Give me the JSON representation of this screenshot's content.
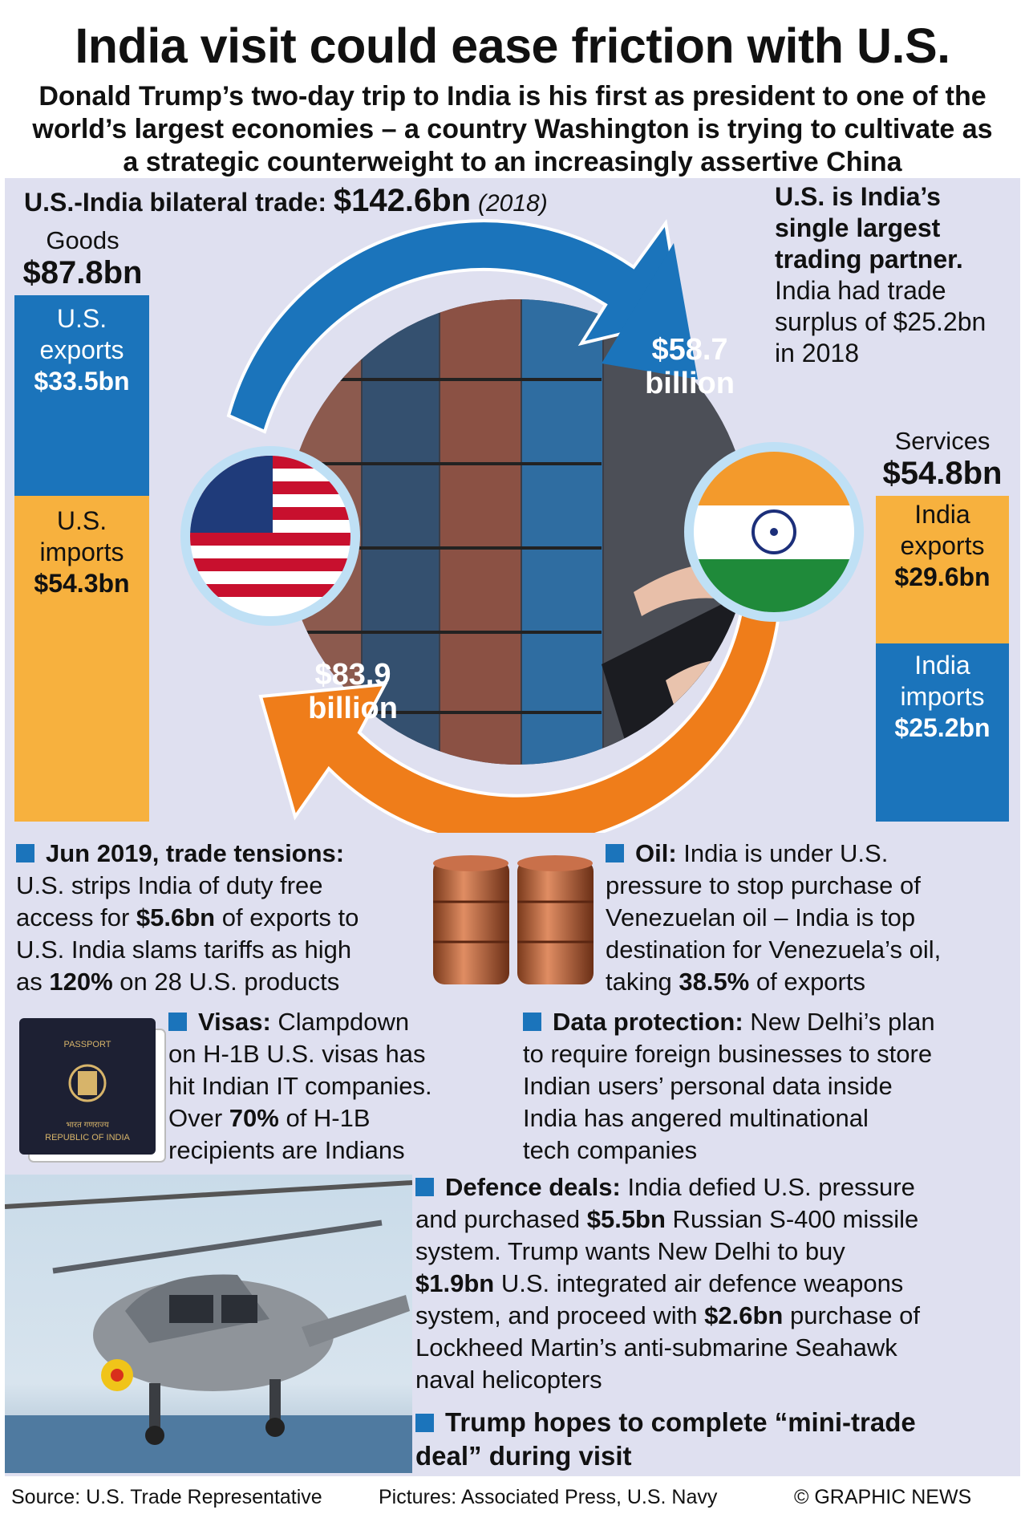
{
  "title": "India visit could ease friction with U.S.",
  "subtitle": "Donald Trump’s two-day trip to India is his first as president to one of the world’s largest economies – a country Washington is trying to cultivate as a strategic counterweight to an increasingly assertive China",
  "trade": {
    "label": "U.S.-India bilateral trade:",
    "total": "$142.6bn",
    "year": "(2018)",
    "arrow_top": {
      "line1": "$58.7",
      "line2": "billion"
    },
    "arrow_bottom": {
      "line1": "$83.9",
      "line2": "billion"
    }
  },
  "goods": {
    "label": "Goods",
    "total": "$87.8bn",
    "exports": {
      "line1": "U.S.",
      "line2": "exports",
      "value": "$33.5bn"
    },
    "imports": {
      "line1": "U.S.",
      "line2": "imports",
      "value": "$54.3bn"
    }
  },
  "services": {
    "label": "Services",
    "total": "$54.8bn",
    "exports": {
      "line1": "India",
      "line2": "exports",
      "value": "$29.6bn"
    },
    "imports": {
      "line1": "India",
      "line2": "imports",
      "value": "$25.2bn"
    }
  },
  "partner": {
    "headline_1": "U.S. is India’s",
    "headline_2": "single largest",
    "headline_3": "trading partner.",
    "body_1": "India had trade",
    "body_2": "surplus of $25.2bn",
    "body_3": "in 2018"
  },
  "tensions": {
    "head": "Jun 2019, trade tensions:",
    "t1": "U.S. strips India of duty free",
    "t2a": "access for ",
    "t2b": "$5.6bn",
    "t2c": " of exports to",
    "t3": "U.S. India slams tariffs as high",
    "t4a": "as ",
    "t4b": "120%",
    "t4c": " on 28 U.S. products"
  },
  "oil": {
    "head": "Oil:",
    "h_rest": " India is under U.S.",
    "t1": "pressure to stop purchase of",
    "t2": "Venezuelan oil – India is top",
    "t3": "destination for Venezuela’s oil,",
    "t4a": "taking ",
    "t4b": "38.5%",
    "t4c": " of exports"
  },
  "visas": {
    "head": "Visas:",
    "h_rest": " Clampdown",
    "t1": "on H-1B U.S. visas has",
    "t2": "hit Indian IT companies.",
    "t3a": "Over ",
    "t3b": "70%",
    "t3c": " of H-1B",
    "t4": "recipients are Indians"
  },
  "passport": {
    "top": "PASSPORT",
    "bottom_hindi": "भारत गणराज्य",
    "bottom": "REPUBLIC OF INDIA"
  },
  "data_protection": {
    "head": "Data protection:",
    "h_rest": " New Delhi’s plan",
    "t1": "to require foreign businesses to store",
    "t2": "Indian users’ personal data inside",
    "t3": "India has angered multinational",
    "t4": "tech companies"
  },
  "defence": {
    "head": "Defence deals:",
    "h_rest": " India defied U.S. pressure",
    "t1a": "and purchased ",
    "t1b": "$5.5bn",
    "t1c": " Russian S-400 missile",
    "t2": "system. Trump wants New Delhi to buy",
    "t3a": "$1.9bn",
    "t3b": " U.S. integrated air defence weapons",
    "t4a": "system, and proceed with ",
    "t4b": "$2.6bn",
    "t4c": " purchase of",
    "t5": "Lockheed Martin’s anti-submarine Seahawk",
    "t6": "naval helicopters"
  },
  "mini_deal": {
    "line1": "Trump hopes to complete “mini-trade",
    "line2": "deal” during visit"
  },
  "footer": {
    "source": "Source: U.S. Trade Representative",
    "pictures": "Pictures: Associated Press, U.S. Navy",
    "credit": "© GRAPHIC NEWS"
  },
  "colors": {
    "blue": "#1b74bb",
    "orange": "#f7b13e",
    "arrow_orange": "#ef7d1a",
    "panel": "#dfe0f0"
  }
}
